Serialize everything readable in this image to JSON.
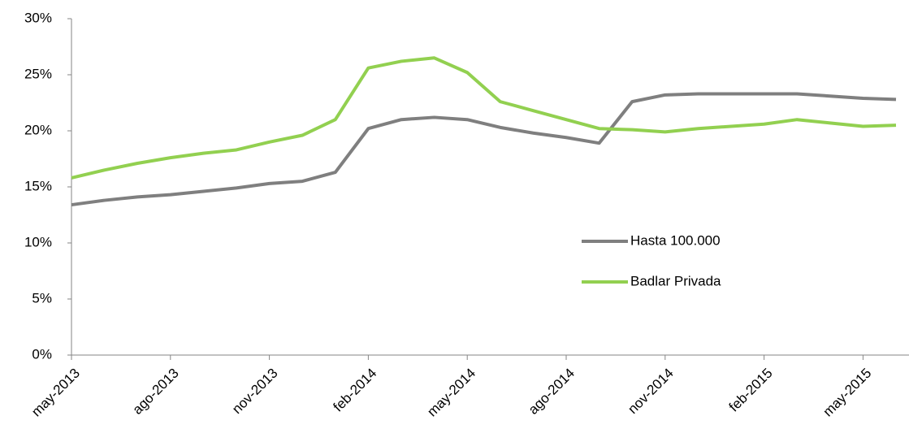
{
  "chart_data": {
    "type": "line",
    "categories": [
      "may-2013",
      null,
      null,
      "ago-2013",
      null,
      null,
      "nov-2013",
      null,
      null,
      "feb-2014",
      null,
      null,
      "may-2014",
      null,
      null,
      "ago-2014",
      null,
      null,
      "nov-2014",
      null,
      null,
      "feb-2015",
      null,
      null,
      "may-2015",
      null
    ],
    "series": [
      {
        "name": "Hasta 100.000",
        "color": "#7f7f7f",
        "values": [
          13.4,
          13.8,
          14.1,
          14.3,
          14.6,
          14.9,
          15.3,
          15.5,
          16.3,
          20.2,
          21.0,
          21.2,
          21.0,
          20.3,
          19.8,
          19.4,
          18.9,
          22.6,
          23.2,
          23.3,
          23.3,
          23.3,
          23.3,
          23.1,
          22.9,
          22.8
        ]
      },
      {
        "name": "Badlar Privada",
        "color": "#92d050",
        "values": [
          15.8,
          16.5,
          17.1,
          17.6,
          18.0,
          18.3,
          19.0,
          19.6,
          21.0,
          25.6,
          26.2,
          26.5,
          25.2,
          22.6,
          21.8,
          21.0,
          20.2,
          20.1,
          19.9,
          20.2,
          20.4,
          20.6,
          21.0,
          20.7,
          20.4,
          20.5
        ]
      }
    ],
    "ylim": [
      0,
      30
    ],
    "yticks": [
      {
        "value": 0,
        "label": "0%"
      },
      {
        "value": 5,
        "label": "5%"
      },
      {
        "value": 10,
        "label": "10%"
      },
      {
        "value": 15,
        "label": "15%"
      },
      {
        "value": 20,
        "label": "20%"
      },
      {
        "value": 25,
        "label": "25%"
      },
      {
        "value": 30,
        "label": "30%"
      }
    ]
  }
}
